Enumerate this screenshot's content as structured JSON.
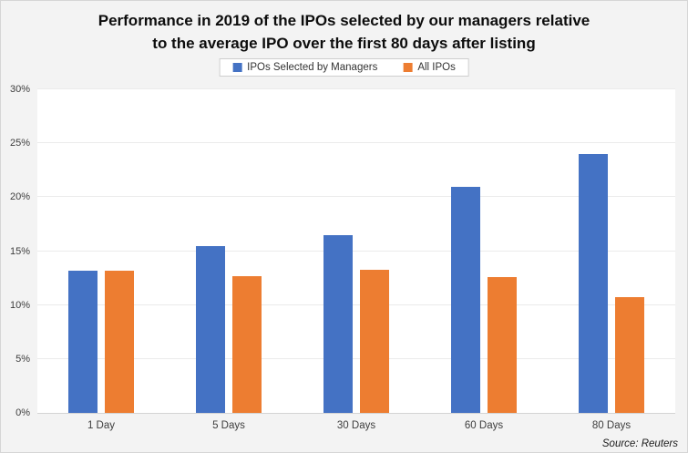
{
  "title": {
    "line1": "Performance in 2019 of the IPOs selected by our managers relative",
    "line2": "to the average IPO over the first 80 days after listing"
  },
  "source": "Source: Reuters",
  "colors": {
    "series_blue": "#4472C4",
    "series_orange": "#ED7D31",
    "background": "#f3f3f3",
    "plot_background": "#ffffff",
    "gridline": "#ebebeb"
  },
  "chart_data": {
    "type": "bar",
    "title": "Performance in 2019 of the IPOs selected by our managers relative to the average IPO over the first 80 days after listing",
    "categories": [
      "1 Day",
      "5 Days",
      "30 Days",
      "60 Days",
      "80 Days"
    ],
    "series": [
      {
        "name": "IPOs Selected by Managers",
        "color": "#4472C4",
        "values": [
          13.2,
          15.5,
          16.5,
          21.0,
          24.0
        ]
      },
      {
        "name": "All IPOs",
        "color": "#ED7D31",
        "values": [
          13.2,
          12.7,
          13.3,
          12.6,
          10.7
        ]
      }
    ],
    "xlabel": "",
    "ylabel": "",
    "ylim": [
      0,
      30
    ],
    "ytick_step": 5,
    "ytick_labels": [
      "0%",
      "5%",
      "10%",
      "15%",
      "20%",
      "25%",
      "30%"
    ],
    "grid": true,
    "legend_position": "top",
    "source": "Source: Reuters"
  }
}
